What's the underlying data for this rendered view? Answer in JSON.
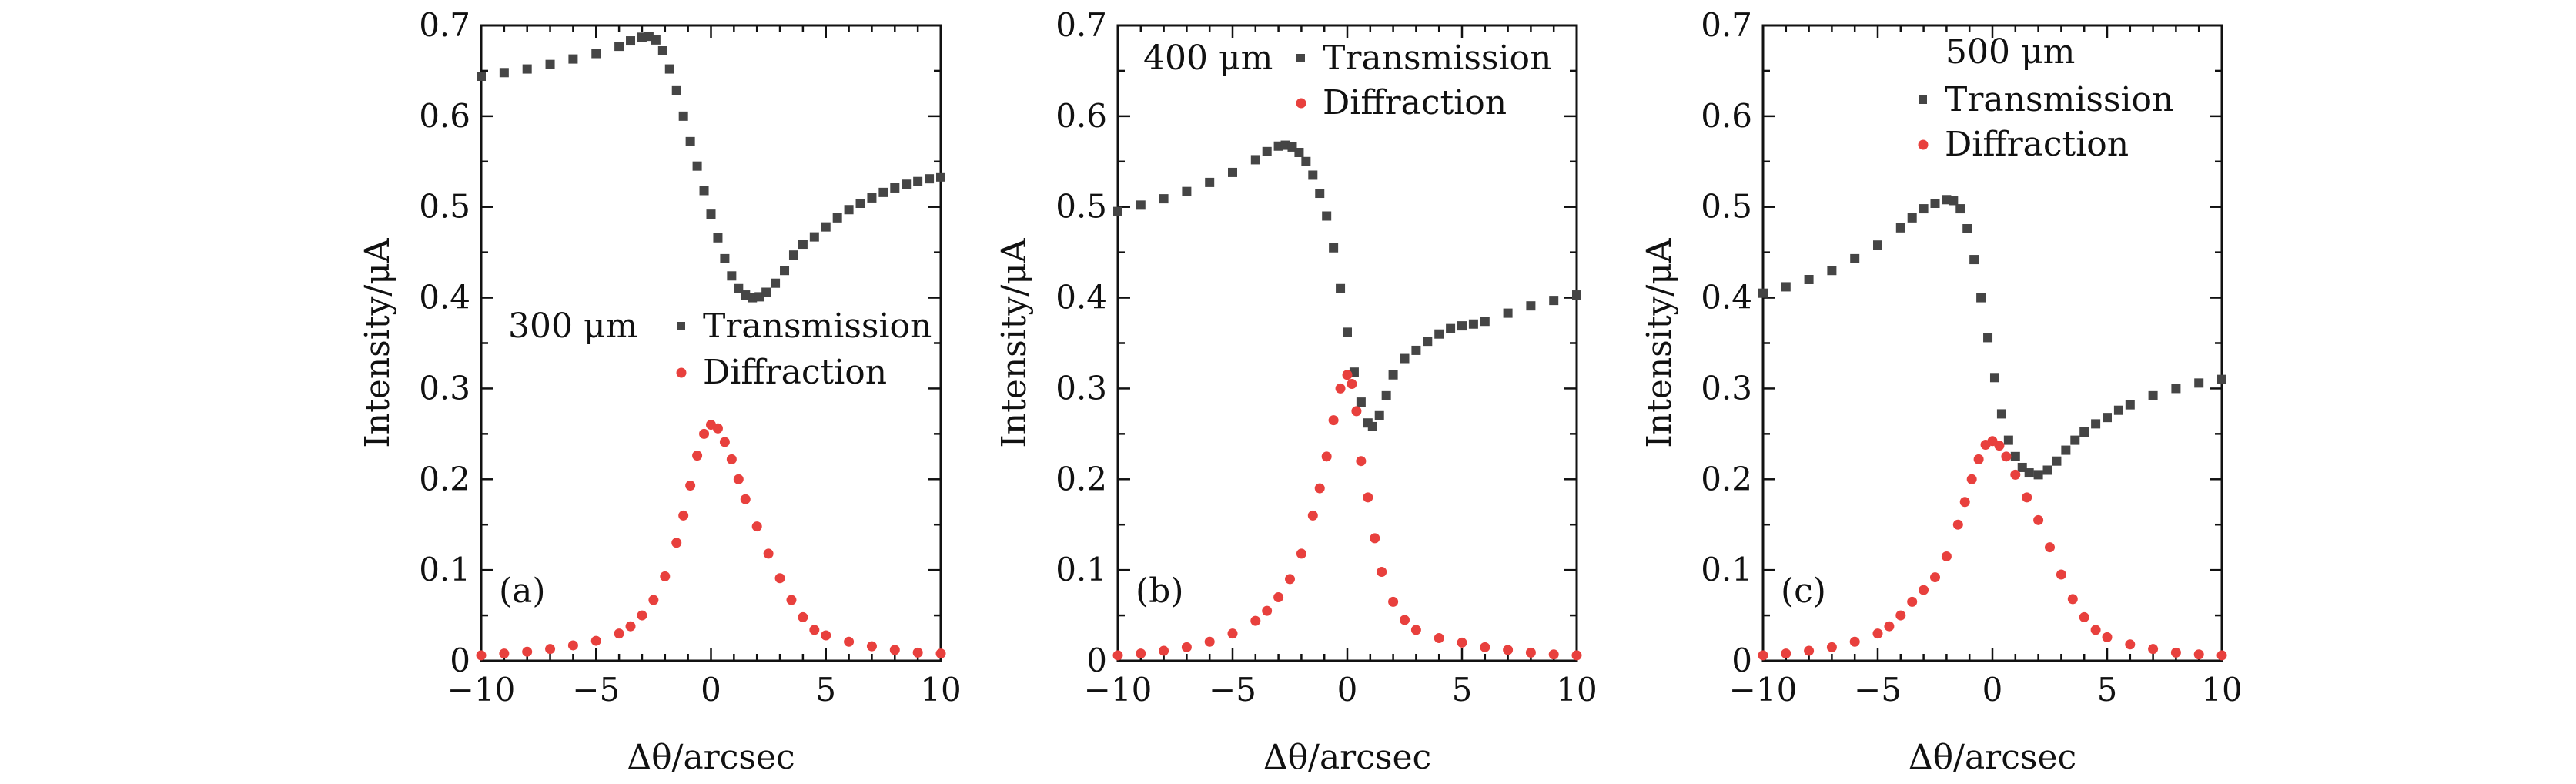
{
  "figure": {
    "panels_count": 3
  },
  "chart_data": [
    {
      "type": "scatter",
      "panel_label": "(a)",
      "legend_title": "300 μm",
      "xlabel": "Δθ/arcsec",
      "ylabel": "Intensity/μA",
      "xlim": [
        -10,
        10
      ],
      "ylim": [
        0,
        0.7
      ],
      "x_ticks": [
        -10,
        -5,
        0,
        5,
        10
      ],
      "x_tick_labels": [
        "−10",
        "−5",
        "0",
        "5",
        "10"
      ],
      "y_ticks": [
        0,
        0.1,
        0.2,
        0.3,
        0.4,
        0.5,
        0.6,
        0.7
      ],
      "y_tick_labels": [
        "0",
        "0.1",
        "0.2",
        "0.3",
        "0.4",
        "0.5",
        "0.6",
        "0.7"
      ],
      "legend_placement": "middle-center",
      "grid": false,
      "series": [
        {
          "name": "Transmission",
          "marker": "square",
          "color": "#454545",
          "points": [
            [
              -10,
              0.644
            ],
            [
              -9,
              0.648
            ],
            [
              -8,
              0.652
            ],
            [
              -7,
              0.657
            ],
            [
              -6,
              0.663
            ],
            [
              -5,
              0.669
            ],
            [
              -4,
              0.677
            ],
            [
              -3.5,
              0.683
            ],
            [
              -3,
              0.687
            ],
            [
              -2.7,
              0.688
            ],
            [
              -2.4,
              0.684
            ],
            [
              -2.1,
              0.672
            ],
            [
              -1.8,
              0.652
            ],
            [
              -1.5,
              0.628
            ],
            [
              -1.2,
              0.6
            ],
            [
              -0.9,
              0.572
            ],
            [
              -0.6,
              0.545
            ],
            [
              -0.3,
              0.518
            ],
            [
              0,
              0.492
            ],
            [
              0.3,
              0.466
            ],
            [
              0.6,
              0.443
            ],
            [
              0.9,
              0.424
            ],
            [
              1.2,
              0.41
            ],
            [
              1.5,
              0.403
            ],
            [
              1.8,
              0.4
            ],
            [
              2.1,
              0.401
            ],
            [
              2.4,
              0.406
            ],
            [
              2.8,
              0.416
            ],
            [
              3.2,
              0.43
            ],
            [
              3.6,
              0.447
            ],
            [
              4,
              0.459
            ],
            [
              4.5,
              0.467
            ],
            [
              5,
              0.478
            ],
            [
              5.5,
              0.488
            ],
            [
              6,
              0.497
            ],
            [
              6.5,
              0.504
            ],
            [
              7,
              0.51
            ],
            [
              7.5,
              0.516
            ],
            [
              8,
              0.521
            ],
            [
              8.5,
              0.525
            ],
            [
              9,
              0.528
            ],
            [
              9.5,
              0.531
            ],
            [
              10,
              0.533
            ]
          ]
        },
        {
          "name": "Diffraction",
          "marker": "circle",
          "color": "#e8403d",
          "points": [
            [
              -10,
              0.006
            ],
            [
              -9,
              0.008
            ],
            [
              -8,
              0.01
            ],
            [
              -7,
              0.013
            ],
            [
              -6,
              0.017
            ],
            [
              -5,
              0.022
            ],
            [
              -4,
              0.03
            ],
            [
              -3.5,
              0.038
            ],
            [
              -3,
              0.05
            ],
            [
              -2.5,
              0.067
            ],
            [
              -2,
              0.093
            ],
            [
              -1.5,
              0.13
            ],
            [
              -1.2,
              0.16
            ],
            [
              -0.9,
              0.193
            ],
            [
              -0.6,
              0.226
            ],
            [
              -0.3,
              0.25
            ],
            [
              0,
              0.26
            ],
            [
              0.3,
              0.256
            ],
            [
              0.6,
              0.241
            ],
            [
              0.9,
              0.222
            ],
            [
              1.2,
              0.2
            ],
            [
              1.5,
              0.178
            ],
            [
              2,
              0.148
            ],
            [
              2.5,
              0.118
            ],
            [
              3,
              0.091
            ],
            [
              3.5,
              0.067
            ],
            [
              4,
              0.048
            ],
            [
              4.5,
              0.034
            ],
            [
              5,
              0.028
            ],
            [
              6,
              0.021
            ],
            [
              7,
              0.016
            ],
            [
              8,
              0.012
            ],
            [
              9,
              0.009
            ],
            [
              10,
              0.008
            ]
          ]
        }
      ]
    },
    {
      "type": "scatter",
      "panel_label": "(b)",
      "legend_title": "400 μm",
      "xlabel": "Δθ/arcsec",
      "ylabel": "Intensity/μA",
      "xlim": [
        -10,
        10
      ],
      "ylim": [
        0,
        0.7
      ],
      "x_ticks": [
        -10,
        -5,
        0,
        5,
        10
      ],
      "x_tick_labels": [
        "−10",
        "−5",
        "0",
        "5",
        "10"
      ],
      "y_ticks": [
        0,
        0.1,
        0.2,
        0.3,
        0.4,
        0.5,
        0.6,
        0.7
      ],
      "y_tick_labels": [
        "0",
        "0.1",
        "0.2",
        "0.3",
        "0.4",
        "0.5",
        "0.6",
        "0.7"
      ],
      "legend_placement": "top-right",
      "grid": false,
      "series": [
        {
          "name": "Transmission",
          "marker": "square",
          "color": "#454545",
          "points": [
            [
              -10,
              0.495
            ],
            [
              -9,
              0.502
            ],
            [
              -8,
              0.509
            ],
            [
              -7,
              0.517
            ],
            [
              -6,
              0.527
            ],
            [
              -5,
              0.538
            ],
            [
              -4,
              0.552
            ],
            [
              -3.5,
              0.561
            ],
            [
              -3,
              0.567
            ],
            [
              -2.7,
              0.568
            ],
            [
              -2.4,
              0.566
            ],
            [
              -2.1,
              0.56
            ],
            [
              -1.8,
              0.55
            ],
            [
              -1.5,
              0.535
            ],
            [
              -1.2,
              0.515
            ],
            [
              -0.9,
              0.49
            ],
            [
              -0.6,
              0.455
            ],
            [
              -0.3,
              0.41
            ],
            [
              0,
              0.362
            ],
            [
              0.3,
              0.318
            ],
            [
              0.6,
              0.285
            ],
            [
              0.9,
              0.262
            ],
            [
              1.1,
              0.258
            ],
            [
              1.4,
              0.27
            ],
            [
              1.7,
              0.292
            ],
            [
              2,
              0.315
            ],
            [
              2.5,
              0.333
            ],
            [
              3,
              0.342
            ],
            [
              3.5,
              0.352
            ],
            [
              4,
              0.36
            ],
            [
              4.5,
              0.366
            ],
            [
              5,
              0.369
            ],
            [
              5.5,
              0.371
            ],
            [
              6,
              0.374
            ],
            [
              7,
              0.383
            ],
            [
              8,
              0.391
            ],
            [
              9,
              0.397
            ],
            [
              10,
              0.403
            ]
          ]
        },
        {
          "name": "Diffraction",
          "marker": "circle",
          "color": "#e8403d",
          "points": [
            [
              -10,
              0.006
            ],
            [
              -9,
              0.008
            ],
            [
              -8,
              0.011
            ],
            [
              -7,
              0.015
            ],
            [
              -6,
              0.021
            ],
            [
              -5,
              0.03
            ],
            [
              -4,
              0.044
            ],
            [
              -3.5,
              0.055
            ],
            [
              -3,
              0.07
            ],
            [
              -2.5,
              0.09
            ],
            [
              -2,
              0.118
            ],
            [
              -1.5,
              0.16
            ],
            [
              -1.2,
              0.19
            ],
            [
              -0.9,
              0.225
            ],
            [
              -0.6,
              0.265
            ],
            [
              -0.3,
              0.3
            ],
            [
              0,
              0.315
            ],
            [
              0.2,
              0.305
            ],
            [
              0.4,
              0.275
            ],
            [
              0.6,
              0.22
            ],
            [
              0.9,
              0.18
            ],
            [
              1.2,
              0.135
            ],
            [
              1.5,
              0.098
            ],
            [
              2,
              0.065
            ],
            [
              2.5,
              0.045
            ],
            [
              3,
              0.034
            ],
            [
              4,
              0.025
            ],
            [
              5,
              0.02
            ],
            [
              6,
              0.015
            ],
            [
              7,
              0.012
            ],
            [
              8,
              0.009
            ],
            [
              9,
              0.007
            ],
            [
              10,
              0.006
            ]
          ]
        }
      ]
    },
    {
      "type": "scatter",
      "panel_label": "(c)",
      "legend_title": "500 μm",
      "xlabel": "Δθ/arcsec",
      "ylabel": "Intensity/μA",
      "xlim": [
        -10,
        10
      ],
      "ylim": [
        0,
        0.7
      ],
      "x_ticks": [
        -10,
        -5,
        0,
        5,
        10
      ],
      "x_tick_labels": [
        "−10",
        "−5",
        "0",
        "5",
        "10"
      ],
      "y_ticks": [
        0,
        0.1,
        0.2,
        0.3,
        0.4,
        0.5,
        0.6,
        0.7
      ],
      "y_tick_labels": [
        "0",
        "0.1",
        "0.2",
        "0.3",
        "0.4",
        "0.5",
        "0.6",
        "0.7"
      ],
      "legend_placement": "top-right",
      "grid": false,
      "series": [
        {
          "name": "Transmission",
          "marker": "square",
          "color": "#454545",
          "points": [
            [
              -10,
              0.405
            ],
            [
              -9,
              0.412
            ],
            [
              -8,
              0.42
            ],
            [
              -7,
              0.43
            ],
            [
              -6,
              0.443
            ],
            [
              -5,
              0.458
            ],
            [
              -4,
              0.477
            ],
            [
              -3.5,
              0.488
            ],
            [
              -3,
              0.498
            ],
            [
              -2.5,
              0.504
            ],
            [
              -2,
              0.508
            ],
            [
              -1.7,
              0.507
            ],
            [
              -1.4,
              0.498
            ],
            [
              -1.1,
              0.476
            ],
            [
              -0.8,
              0.442
            ],
            [
              -0.5,
              0.4
            ],
            [
              -0.2,
              0.356
            ],
            [
              0.1,
              0.312
            ],
            [
              0.4,
              0.272
            ],
            [
              0.7,
              0.243
            ],
            [
              1,
              0.225
            ],
            [
              1.3,
              0.213
            ],
            [
              1.6,
              0.207
            ],
            [
              2,
              0.205
            ],
            [
              2.4,
              0.21
            ],
            [
              2.8,
              0.22
            ],
            [
              3.2,
              0.232
            ],
            [
              3.6,
              0.243
            ],
            [
              4,
              0.252
            ],
            [
              4.5,
              0.261
            ],
            [
              5,
              0.268
            ],
            [
              5.5,
              0.276
            ],
            [
              6,
              0.282
            ],
            [
              7,
              0.292
            ],
            [
              8,
              0.3
            ],
            [
              9,
              0.306
            ],
            [
              10,
              0.31
            ]
          ]
        },
        {
          "name": "Diffraction",
          "marker": "circle",
          "color": "#e8403d",
          "points": [
            [
              -10,
              0.006
            ],
            [
              -9,
              0.008
            ],
            [
              -8,
              0.011
            ],
            [
              -7,
              0.015
            ],
            [
              -6,
              0.021
            ],
            [
              -5,
              0.03
            ],
            [
              -4.5,
              0.038
            ],
            [
              -4,
              0.05
            ],
            [
              -3.5,
              0.065
            ],
            [
              -3,
              0.078
            ],
            [
              -2.5,
              0.092
            ],
            [
              -2,
              0.115
            ],
            [
              -1.5,
              0.15
            ],
            [
              -1.2,
              0.175
            ],
            [
              -0.9,
              0.2
            ],
            [
              -0.6,
              0.222
            ],
            [
              -0.3,
              0.238
            ],
            [
              0,
              0.242
            ],
            [
              0.3,
              0.237
            ],
            [
              0.6,
              0.225
            ],
            [
              1,
              0.205
            ],
            [
              1.5,
              0.18
            ],
            [
              2,
              0.155
            ],
            [
              2.5,
              0.125
            ],
            [
              3,
              0.095
            ],
            [
              3.5,
              0.068
            ],
            [
              4,
              0.048
            ],
            [
              4.5,
              0.034
            ],
            [
              5,
              0.026
            ],
            [
              6,
              0.018
            ],
            [
              7,
              0.013
            ],
            [
              8,
              0.009
            ],
            [
              9,
              0.007
            ],
            [
              10,
              0.006
            ]
          ]
        }
      ]
    }
  ]
}
